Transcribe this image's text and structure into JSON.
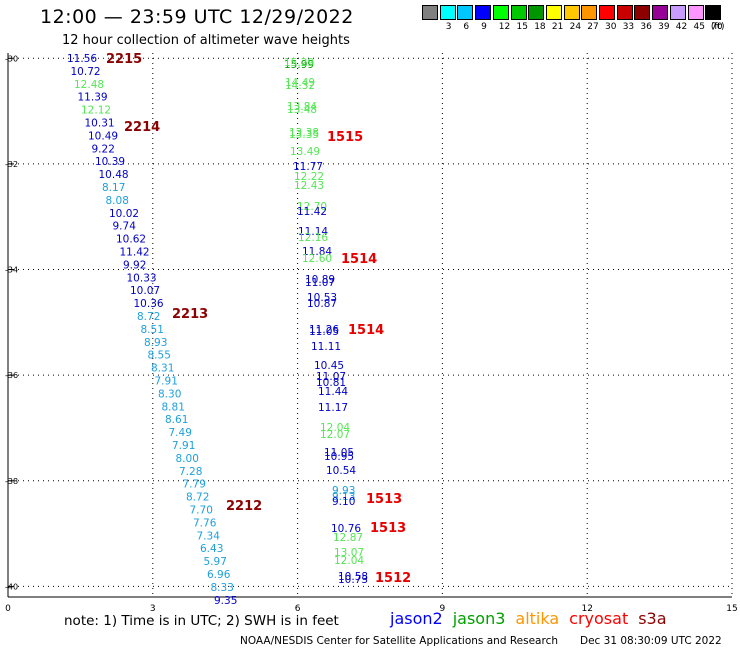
{
  "header": {
    "title": "12:00 — 23:59 UTC 12/29/2022",
    "subtitle": "12 hour collection of altimeter wave heights"
  },
  "legend": {
    "unit": "(ft)",
    "bins": [
      {
        "color": "#808080",
        "label": ""
      },
      {
        "color": "#00ffff",
        "label": "3"
      },
      {
        "color": "#00c8ff",
        "label": "6"
      },
      {
        "color": "#0000ff",
        "label": "9"
      },
      {
        "color": "#00ff00",
        "label": "12"
      },
      {
        "color": "#00c800",
        "label": "15"
      },
      {
        "color": "#009600",
        "label": "18"
      },
      {
        "color": "#ffff00",
        "label": "21"
      },
      {
        "color": "#ffc800",
        "label": "24"
      },
      {
        "color": "#ff9600",
        "label": "27"
      },
      {
        "color": "#ff0000",
        "label": "30"
      },
      {
        "color": "#c80000",
        "label": "33"
      },
      {
        "color": "#8c0000",
        "label": "36"
      },
      {
        "color": "#960096",
        "label": "39"
      },
      {
        "color": "#c89bff",
        "label": "42"
      },
      {
        "color": "#ff96ff",
        "label": "45"
      },
      {
        "color": "#000000",
        "label": "70"
      }
    ]
  },
  "axes": {
    "lon_ticks": [
      "0",
      "3",
      "6",
      "9",
      "12",
      "15"
    ],
    "lat_ticks": [
      "-30",
      "-32",
      "-34",
      "-36",
      "-38",
      "-40"
    ]
  },
  "track1": {
    "labels": [
      {
        "text": "2215",
        "color": "#8b0000"
      },
      {
        "text": "2214",
        "color": "#8b0000"
      },
      {
        "text": "2213",
        "color": "#8b0000"
      },
      {
        "text": "2212",
        "color": "#8b0000"
      }
    ],
    "values": [
      {
        "v": "11.56",
        "c": "#0000c8"
      },
      {
        "v": "10.72",
        "c": "#0000c8"
      },
      {
        "v": "12.48",
        "c": "#55e655"
      },
      {
        "v": "11.39",
        "c": "#0000c8"
      },
      {
        "v": "12.12",
        "c": "#55e655"
      },
      {
        "v": "10.31",
        "c": "#0000c8"
      },
      {
        "v": "10.49",
        "c": "#0000c8"
      },
      {
        "v": "9.22",
        "c": "#0000c8"
      },
      {
        "v": "10.39",
        "c": "#0000c8"
      },
      {
        "v": "10.48",
        "c": "#0000c8"
      },
      {
        "v": "8.17",
        "c": "#1ea0dc"
      },
      {
        "v": "8.08",
        "c": "#1ea0dc"
      },
      {
        "v": "10.02",
        "c": "#0000c8"
      },
      {
        "v": "9.74",
        "c": "#0000c8"
      },
      {
        "v": "10.62",
        "c": "#0000c8"
      },
      {
        "v": "11.42",
        "c": "#0000c8"
      },
      {
        "v": "9.92",
        "c": "#0000c8"
      },
      {
        "v": "10.33",
        "c": "#0000c8"
      },
      {
        "v": "10.07",
        "c": "#0000c8"
      },
      {
        "v": "10.36",
        "c": "#0000c8"
      },
      {
        "v": "8.72",
        "c": "#1ea0dc"
      },
      {
        "v": "8.51",
        "c": "#1ea0dc"
      },
      {
        "v": "8.93",
        "c": "#1ea0dc"
      },
      {
        "v": "8.55",
        "c": "#1ea0dc"
      },
      {
        "v": "8.31",
        "c": "#1ea0dc"
      },
      {
        "v": "7.91",
        "c": "#1ea0dc"
      },
      {
        "v": "8.30",
        "c": "#1ea0dc"
      },
      {
        "v": "8.81",
        "c": "#1ea0dc"
      },
      {
        "v": "8.61",
        "c": "#1ea0dc"
      },
      {
        "v": "7.49",
        "c": "#1ea0dc"
      },
      {
        "v": "7.91",
        "c": "#1ea0dc"
      },
      {
        "v": "8.00",
        "c": "#1ea0dc"
      },
      {
        "v": "7.28",
        "c": "#1ea0dc"
      },
      {
        "v": "7.79",
        "c": "#1ea0dc"
      },
      {
        "v": "8.72",
        "c": "#1ea0dc"
      },
      {
        "v": "7.70",
        "c": "#1ea0dc"
      },
      {
        "v": "7.76",
        "c": "#1ea0dc"
      },
      {
        "v": "7.34",
        "c": "#1ea0dc"
      },
      {
        "v": "6.43",
        "c": "#1ea0dc"
      },
      {
        "v": "5.97",
        "c": "#1ea0dc"
      },
      {
        "v": "6.96",
        "c": "#1ea0dc"
      },
      {
        "v": "8.33",
        "c": "#1ea0dc"
      },
      {
        "v": "9.35",
        "c": "#0000c8"
      }
    ]
  },
  "track2": {
    "labels": [
      {
        "text": "1515",
        "color": "#e60000"
      },
      {
        "text": "1514",
        "color": "#e60000"
      },
      {
        "text": "1514",
        "color": "#e60000"
      },
      {
        "text": "1513",
        "color": "#e60000"
      },
      {
        "text": "1513",
        "color": "#e60000"
      },
      {
        "text": "1512",
        "color": "#e60000"
      }
    ],
    "values": [
      {
        "v": "15.99",
        "c": "#00a000"
      },
      {
        "v": "15.29",
        "c": "#55e655"
      },
      {
        "v": "14.49",
        "c": "#55e655"
      },
      {
        "v": "14.32",
        "c": "#55e655"
      },
      {
        "v": "13.84",
        "c": "#55e655"
      },
      {
        "v": "13.48",
        "c": "#55e655"
      },
      {
        "v": "13.38",
        "c": "#55e655"
      },
      {
        "v": "13.35",
        "c": "#55e655"
      },
      {
        "v": "13.49",
        "c": "#55e655"
      },
      {
        "v": "11.77",
        "c": "#0000c8"
      },
      {
        "v": "12.22",
        "c": "#55e655"
      },
      {
        "v": "12.43",
        "c": "#55e655"
      },
      {
        "v": "12.70",
        "c": "#55e655"
      },
      {
        "v": "11.42",
        "c": "#0000c8"
      },
      {
        "v": "11.14",
        "c": "#0000c8"
      },
      {
        "v": "12.16",
        "c": "#55e655"
      },
      {
        "v": "11.84",
        "c": "#0000c8"
      },
      {
        "v": "12.60",
        "c": "#55e655"
      },
      {
        "v": "10.89",
        "c": "#0000c8"
      },
      {
        "v": "11.07",
        "c": "#0000c8"
      },
      {
        "v": "10.53",
        "c": "#0000c8"
      },
      {
        "v": "10.87",
        "c": "#0000c8"
      },
      {
        "v": "11.26",
        "c": "#0000c8"
      },
      {
        "v": "11.05",
        "c": "#0000c8"
      },
      {
        "v": "11.11",
        "c": "#0000c8"
      },
      {
        "v": "10.45",
        "c": "#0000c8"
      },
      {
        "v": "11.07",
        "c": "#0000c8"
      },
      {
        "v": "10.81",
        "c": "#0000c8"
      },
      {
        "v": "11.44",
        "c": "#0000c8"
      },
      {
        "v": "11.17",
        "c": "#0000c8"
      },
      {
        "v": "12.04",
        "c": "#55e655"
      },
      {
        "v": "12.07",
        "c": "#55e655"
      },
      {
        "v": "11.05",
        "c": "#0000c8"
      },
      {
        "v": "10.95",
        "c": "#0000c8"
      },
      {
        "v": "10.54",
        "c": "#0000c8"
      },
      {
        "v": "9.93",
        "c": "#1ea0dc"
      },
      {
        "v": "9.13",
        "c": "#1ea0dc"
      },
      {
        "v": "9.10",
        "c": "#0000c8"
      },
      {
        "v": "10.76",
        "c": "#0000c8"
      },
      {
        "v": "12.87",
        "c": "#55e655"
      },
      {
        "v": "13.07",
        "c": "#55e655"
      },
      {
        "v": "12.04",
        "c": "#55e655"
      },
      {
        "v": "10.58",
        "c": "#0000c8"
      },
      {
        "v": "10.73",
        "c": "#0000c8"
      }
    ]
  },
  "footer": {
    "note": "note:  1) Time is in UTC; 2) SWH is in feet",
    "satellites": [
      {
        "name": "jason2",
        "color": "#0000ff"
      },
      {
        "name": "jason3",
        "color": "#00a000"
      },
      {
        "name": "altika",
        "color": "#ff9600"
      },
      {
        "name": "cryosat",
        "color": "#ff0000"
      },
      {
        "name": "s3a",
        "color": "#8b0000"
      }
    ],
    "credit": "NOAA/NESDIS Center for Satellite Applications and Research",
    "timestamp": "Dec 31 08:30:09 UTC 2022"
  }
}
